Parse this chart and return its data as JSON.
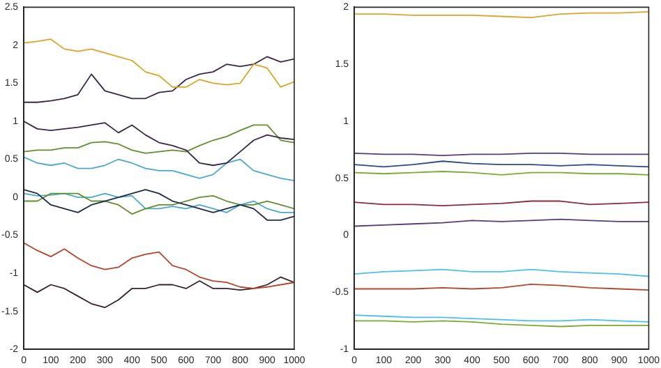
{
  "chart_data": [
    {
      "type": "line",
      "x": [
        0,
        50,
        100,
        150,
        200,
        250,
        300,
        350,
        400,
        450,
        500,
        550,
        600,
        650,
        700,
        750,
        800,
        850,
        900,
        950,
        1000
      ],
      "xlim": [
        0,
        1000
      ],
      "xticks": [
        0,
        100,
        200,
        300,
        400,
        500,
        600,
        700,
        800,
        900,
        1000
      ],
      "ylim": [
        -2,
        2.5
      ],
      "yticks": [
        -2,
        -1.5,
        -1,
        -0.5,
        0,
        0.5,
        1,
        1.5,
        2,
        2.5
      ],
      "grid": false,
      "legend": false,
      "series": [
        {
          "color": "#d9a42a",
          "values": [
            2.03,
            2.05,
            2.08,
            1.95,
            1.92,
            1.95,
            1.9,
            1.85,
            1.8,
            1.65,
            1.6,
            1.45,
            1.45,
            1.55,
            1.5,
            1.48,
            1.5,
            1.75,
            1.7,
            1.45,
            1.52
          ]
        },
        {
          "color": "#3a2448",
          "values": [
            1.25,
            1.25,
            1.27,
            1.3,
            1.35,
            1.62,
            1.4,
            1.35,
            1.3,
            1.3,
            1.38,
            1.4,
            1.55,
            1.62,
            1.65,
            1.75,
            1.72,
            1.75,
            1.85,
            1.78,
            1.82
          ]
        },
        {
          "color": "#3a2448",
          "values": [
            1.0,
            0.9,
            0.88,
            0.9,
            0.92,
            0.95,
            0.98,
            0.85,
            0.95,
            0.82,
            0.72,
            0.68,
            0.62,
            0.45,
            0.42,
            0.45,
            0.6,
            0.75,
            0.82,
            0.78,
            0.76
          ]
        },
        {
          "color": "#5f8f2e",
          "values": [
            0.6,
            0.62,
            0.62,
            0.65,
            0.65,
            0.72,
            0.73,
            0.7,
            0.62,
            0.58,
            0.6,
            0.62,
            0.6,
            0.68,
            0.75,
            0.8,
            0.88,
            0.95,
            0.95,
            0.75,
            0.72
          ]
        },
        {
          "color": "#4aa8d0",
          "values": [
            0.53,
            0.45,
            0.42,
            0.45,
            0.38,
            0.38,
            0.42,
            0.5,
            0.45,
            0.38,
            0.35,
            0.35,
            0.3,
            0.25,
            0.3,
            0.45,
            0.5,
            0.35,
            0.3,
            0.25,
            0.22
          ]
        },
        {
          "color": "#1f2a4a",
          "values": [
            0.1,
            0.05,
            -0.1,
            -0.15,
            -0.2,
            -0.1,
            -0.05,
            0.0,
            0.05,
            0.1,
            0.05,
            -0.05,
            -0.1,
            -0.15,
            -0.2,
            -0.15,
            -0.1,
            -0.15,
            -0.3,
            -0.3,
            -0.25
          ]
        },
        {
          "color": "#5f8f2e",
          "values": [
            -0.05,
            -0.05,
            0.05,
            0.05,
            0.05,
            -0.05,
            -0.05,
            -0.1,
            -0.22,
            -0.15,
            -0.1,
            -0.1,
            -0.05,
            0.0,
            0.02,
            -0.05,
            -0.1,
            -0.1,
            -0.05,
            -0.1,
            -0.15
          ]
        },
        {
          "color": "#4aa8d0",
          "values": [
            0.05,
            0.02,
            0.03,
            0.05,
            0.0,
            0.0,
            0.05,
            0.0,
            0.02,
            -0.15,
            -0.15,
            -0.12,
            -0.15,
            -0.1,
            -0.15,
            -0.2,
            -0.1,
            -0.05,
            -0.15,
            -0.2,
            -0.2
          ]
        },
        {
          "color": "#b5452a",
          "values": [
            -0.6,
            -0.7,
            -0.78,
            -0.68,
            -0.8,
            -0.9,
            -0.95,
            -0.92,
            -0.8,
            -0.75,
            -0.72,
            -0.9,
            -0.95,
            -1.05,
            -1.1,
            -1.12,
            -1.18,
            -1.2,
            -1.18,
            -1.15,
            -1.12
          ]
        },
        {
          "color": "#3a2028",
          "values": [
            -1.15,
            -1.25,
            -1.15,
            -1.2,
            -1.3,
            -1.4,
            -1.45,
            -1.35,
            -1.2,
            -1.2,
            -1.15,
            -1.15,
            -1.2,
            -1.1,
            -1.2,
            -1.2,
            -1.22,
            -1.2,
            -1.15,
            -1.05,
            -1.12
          ]
        }
      ]
    },
    {
      "type": "line",
      "x": [
        0,
        100,
        200,
        300,
        400,
        500,
        600,
        700,
        800,
        900,
        1000
      ],
      "xlim": [
        0,
        1000
      ],
      "xticks": [
        0,
        100,
        200,
        300,
        400,
        500,
        600,
        700,
        800,
        900,
        1000
      ],
      "ylim": [
        -1,
        2
      ],
      "yticks": [
        -1,
        -0.5,
        0,
        0.5,
        1,
        1.5,
        2
      ],
      "grid": false,
      "legend": false,
      "series": [
        {
          "color": "#d9a42a",
          "values": [
            1.94,
            1.94,
            1.93,
            1.93,
            1.93,
            1.92,
            1.91,
            1.94,
            1.95,
            1.95,
            1.96
          ]
        },
        {
          "color": "#5a3a78",
          "values": [
            0.72,
            0.71,
            0.71,
            0.7,
            0.71,
            0.71,
            0.72,
            0.72,
            0.71,
            0.71,
            0.71
          ]
        },
        {
          "color": "#2a4a8a",
          "values": [
            0.62,
            0.6,
            0.62,
            0.65,
            0.63,
            0.62,
            0.62,
            0.61,
            0.62,
            0.61,
            0.6
          ]
        },
        {
          "color": "#77ac30",
          "values": [
            0.55,
            0.54,
            0.55,
            0.56,
            0.55,
            0.53,
            0.55,
            0.55,
            0.54,
            0.54,
            0.53
          ]
        },
        {
          "color": "#8a2a3a",
          "values": [
            0.29,
            0.27,
            0.27,
            0.26,
            0.27,
            0.28,
            0.3,
            0.3,
            0.27,
            0.28,
            0.29
          ]
        },
        {
          "color": "#5a3a78",
          "values": [
            0.08,
            0.09,
            0.1,
            0.11,
            0.13,
            0.12,
            0.13,
            0.14,
            0.13,
            0.12,
            0.12
          ]
        },
        {
          "color": "#4dbeee",
          "values": [
            -0.34,
            -0.32,
            -0.31,
            -0.3,
            -0.32,
            -0.32,
            -0.3,
            -0.32,
            -0.33,
            -0.34,
            -0.36
          ]
        },
        {
          "color": "#b5452a",
          "values": [
            -0.47,
            -0.47,
            -0.47,
            -0.46,
            -0.47,
            -0.46,
            -0.43,
            -0.44,
            -0.46,
            -0.47,
            -0.48
          ]
        },
        {
          "color": "#4dbeee",
          "values": [
            -0.7,
            -0.71,
            -0.72,
            -0.72,
            -0.73,
            -0.74,
            -0.75,
            -0.75,
            -0.74,
            -0.75,
            -0.76
          ]
        },
        {
          "color": "#77ac30",
          "values": [
            -0.75,
            -0.75,
            -0.76,
            -0.75,
            -0.76,
            -0.78,
            -0.79,
            -0.8,
            -0.79,
            -0.79,
            -0.79
          ]
        }
      ]
    }
  ]
}
